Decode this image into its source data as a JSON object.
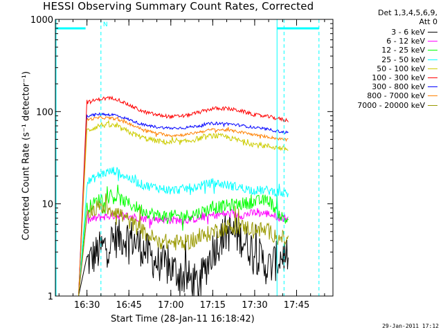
{
  "chart_data": {
    "type": "line",
    "title": "HESSI Observing Summary Count Rates, Corrected",
    "xlabel": "Start Time (28-Jan-11 16:18:42)",
    "ylabel": "Corrected Count Rate (s⁻¹ detector⁻¹)",
    "yscale": "log",
    "ylim": [
      1,
      1000
    ],
    "xlim": [
      "16:18:42",
      "17:58:00"
    ],
    "xticks": [
      "16:30",
      "16:45",
      "17:00",
      "17:15",
      "17:30",
      "17:45"
    ],
    "yticks": [
      "1",
      "10",
      "100",
      "1000"
    ],
    "x": [
      "16:27",
      "16:30",
      "16:35",
      "16:40",
      "16:45",
      "16:50",
      "16:55",
      "17:00",
      "17:05",
      "17:10",
      "17:15",
      "17:20",
      "17:25",
      "17:30",
      "17:35",
      "17:40",
      "17:42"
    ],
    "series": [
      {
        "name": "3 - 6 keV",
        "color": "#000000",
        "values": [
          1,
          2.3,
          3.2,
          4.2,
          4.4,
          3.3,
          2.3,
          2.0,
          1.6,
          1.3,
          3.2,
          5.0,
          4.4,
          3.0,
          2.0,
          2.8,
          2.7
        ]
      },
      {
        "name": "6 - 12 keV",
        "color": "#ff00ff",
        "values": [
          1,
          6.5,
          7.2,
          7.5,
          7.4,
          7.0,
          6.8,
          6.7,
          6.6,
          7.0,
          7.5,
          7.8,
          7.5,
          8.0,
          7.8,
          7.0,
          7.0
        ]
      },
      {
        "name": "12 - 25 keV",
        "color": "#00ff00",
        "values": [
          1,
          9.0,
          11.5,
          12.0,
          10.0,
          8.5,
          7.5,
          7.3,
          7.4,
          8.0,
          9.0,
          9.5,
          10.0,
          10.5,
          11.0,
          7.0,
          6.5
        ]
      },
      {
        "name": "25 - 50 keV",
        "color": "#00ffff",
        "values": [
          1,
          17,
          21,
          23,
          19,
          16,
          15,
          14,
          14.5,
          15.5,
          17,
          16,
          15,
          14,
          14,
          13,
          13
        ]
      },
      {
        "name": "50 - 100 keV",
        "color": "#cccc00",
        "values": [
          1,
          62,
          72,
          70,
          60,
          52,
          48,
          46,
          47,
          51,
          55,
          53,
          48,
          44,
          42,
          40,
          39
        ]
      },
      {
        "name": "100 - 300 keV",
        "color": "#ff0000",
        "values": [
          1,
          125,
          138,
          140,
          118,
          100,
          92,
          88,
          90,
          98,
          108,
          108,
          102,
          92,
          88,
          82,
          80
        ]
      },
      {
        "name": "300 - 800 keV",
        "color": "#0000ff",
        "values": [
          1,
          90,
          94,
          92,
          82,
          72,
          68,
          66,
          67,
          70,
          75,
          74,
          71,
          67,
          64,
          60,
          59
        ]
      },
      {
        "name": "800 - 7000 keV",
        "color": "#ff8000",
        "values": [
          1,
          82,
          86,
          84,
          74,
          64,
          58,
          55,
          56,
          60,
          64,
          63,
          60,
          56,
          53,
          50,
          49
        ]
      },
      {
        "name": "7000 - 20000 keV",
        "color": "#999900",
        "values": [
          1,
          8.0,
          9.5,
          8.5,
          6.5,
          5.0,
          4.0,
          3.8,
          3.8,
          4.2,
          5.0,
          5.6,
          5.6,
          5.4,
          5.0,
          4.2,
          3.9
        ]
      }
    ],
    "annotations": {
      "legend_header": [
        "Det 1,3,4,5,6,9,",
        "Att 0"
      ],
      "night_marker_label": "N",
      "timestamp": "29-Jan-2011 17:12"
    }
  }
}
